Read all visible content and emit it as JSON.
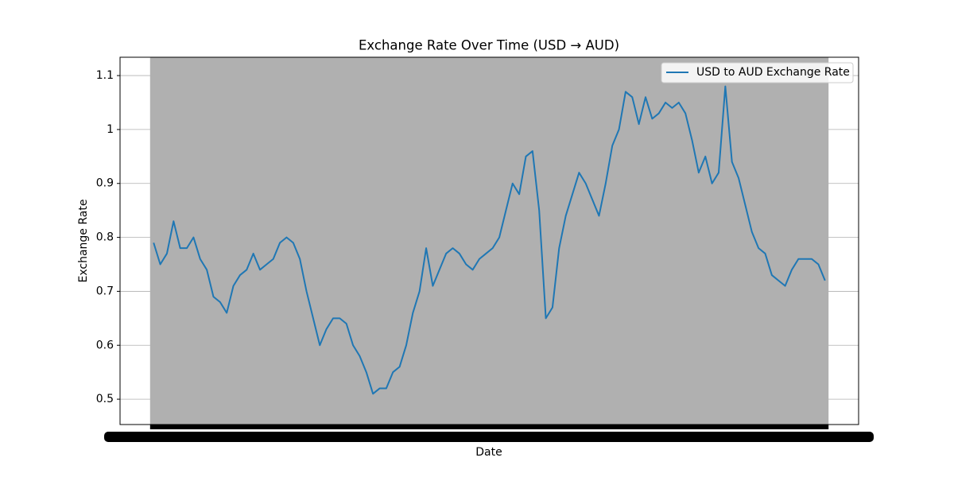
{
  "chart_data": {
    "type": "line",
    "title": "Exchange Rate Over Time (USD → AUD)",
    "x_label": "Date",
    "y_label": "Exchange Rate",
    "categories": [
      null,
      null,
      null,
      null,
      null,
      null,
      null,
      null,
      null,
      null,
      null,
      null,
      null,
      null,
      null,
      null,
      null,
      null,
      null,
      null,
      null,
      null,
      null,
      null,
      null,
      null,
      null,
      null,
      null,
      null,
      null,
      null,
      null,
      null,
      null,
      null,
      null,
      null,
      null,
      null,
      null,
      null,
      null,
      null,
      null,
      null,
      null,
      null,
      null,
      null,
      null,
      null,
      null,
      null,
      null,
      null,
      null,
      null,
      null,
      null,
      null,
      null,
      null,
      null,
      null,
      null,
      null,
      null,
      null,
      null,
      null,
      null,
      null,
      null,
      null,
      null,
      null,
      null,
      null,
      null,
      null,
      null,
      null,
      null,
      null,
      null,
      null,
      null,
      null,
      null,
      null,
      null,
      null,
      null,
      null,
      null,
      null,
      null,
      null,
      null,
      null,
      null
    ],
    "series": [
      {
        "name": "USD to AUD Exchange Rate",
        "color": "#1f77b4",
        "values": [
          0.79,
          0.75,
          0.77,
          0.83,
          0.78,
          0.78,
          0.8,
          0.76,
          0.74,
          0.69,
          0.68,
          0.66,
          0.71,
          0.73,
          0.74,
          0.77,
          0.74,
          0.75,
          0.76,
          0.79,
          0.8,
          0.79,
          0.76,
          0.7,
          0.65,
          0.6,
          0.63,
          0.65,
          0.65,
          0.64,
          0.6,
          0.58,
          0.55,
          0.51,
          0.52,
          0.52,
          0.55,
          0.56,
          0.6,
          0.66,
          0.7,
          0.78,
          0.71,
          0.74,
          0.77,
          0.78,
          0.77,
          0.75,
          0.74,
          0.76,
          0.77,
          0.78,
          0.8,
          0.85,
          0.9,
          0.88,
          0.95,
          0.96,
          0.85,
          0.65,
          0.67,
          0.78,
          0.84,
          0.88,
          0.92,
          0.9,
          0.87,
          0.84,
          0.9,
          0.97,
          1.0,
          1.07,
          1.06,
          1.01,
          1.06,
          1.02,
          1.03,
          1.05,
          1.04,
          1.05,
          1.03,
          0.98,
          0.92,
          0.95,
          0.9,
          0.92,
          1.08,
          0.94,
          0.91,
          0.86,
          0.81,
          0.78,
          0.77,
          0.73,
          0.72,
          0.71,
          0.74,
          0.76,
          0.76,
          0.76,
          0.75,
          0.72
        ]
      }
    ],
    "ylim": [
      0.453,
      1.134
    ],
    "yticks": [
      0.5,
      0.6,
      0.7,
      0.8,
      0.9,
      1.0,
      1.1
    ],
    "grid": true,
    "legend": "upper right"
  }
}
